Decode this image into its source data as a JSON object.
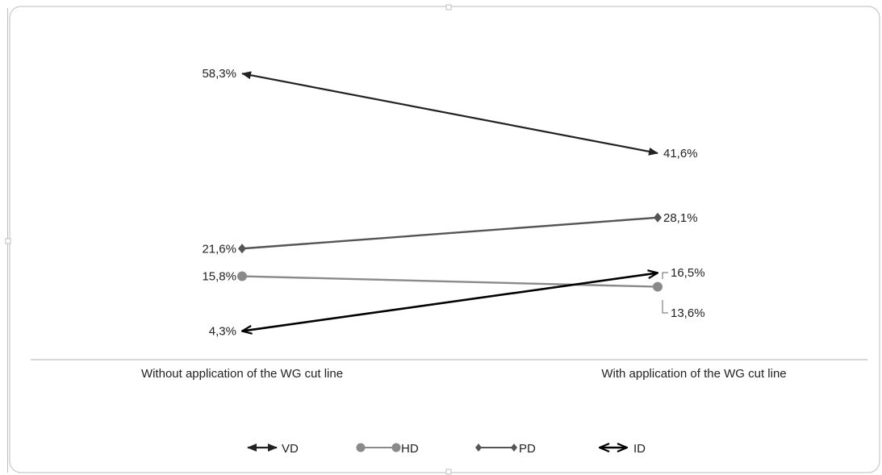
{
  "chart_data": {
    "type": "line",
    "categories": [
      "Without application of the WG cut line",
      "With application of the WG cut line"
    ],
    "series": [
      {
        "name": "VD",
        "values": [
          58.3,
          41.6
        ],
        "labels": [
          "58,3%",
          "41,6%"
        ],
        "color": "#222222",
        "marker": "arrow-filled"
      },
      {
        "name": "HD",
        "values": [
          15.8,
          13.6
        ],
        "labels": [
          "15,8%",
          "13,6%"
        ],
        "color": "#8a8a8a",
        "marker": "circle"
      },
      {
        "name": "PD",
        "values": [
          21.6,
          28.1
        ],
        "labels": [
          "21,6%",
          "28,1%"
        ],
        "color": "#555555",
        "marker": "diamond"
      },
      {
        "name": "ID",
        "values": [
          4.3,
          16.5
        ],
        "labels": [
          "4,3%",
          "16,5%"
        ],
        "color": "#000000",
        "marker": "arrow-open"
      }
    ],
    "ylim": [
      0,
      70
    ],
    "legend": "bottom",
    "grid": false
  }
}
